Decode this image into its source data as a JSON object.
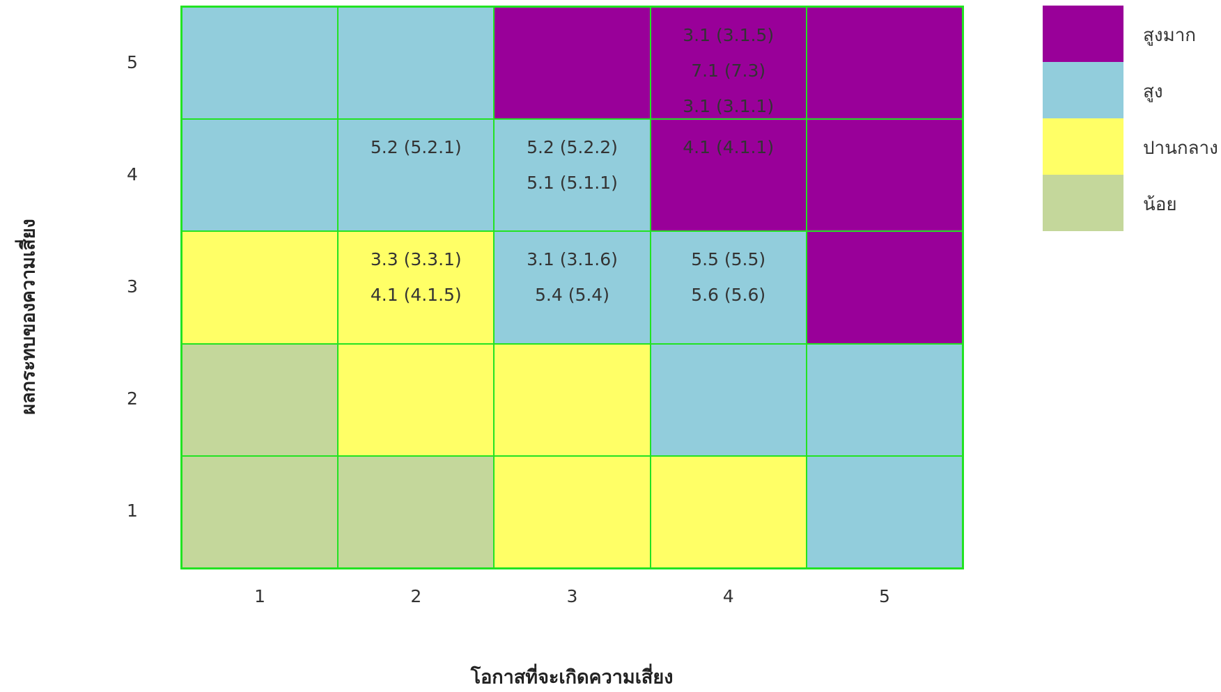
{
  "chart_data": {
    "type": "heatmap",
    "title": "",
    "xlabel": "โอกาสที่จะเกิดความเสี่ยง",
    "ylabel": "ผลกระทบของความเสี่ยง",
    "x_categories": [
      "1",
      "2",
      "3",
      "4",
      "5"
    ],
    "y_categories": [
      "1",
      "2",
      "3",
      "4",
      "5"
    ],
    "colors": {
      "very_high": "#990099",
      "high": "#92cddc",
      "medium": "#ffff66",
      "low": "#c4d79b",
      "grid": "#22e322"
    },
    "legend": {
      "placement": "right",
      "items": [
        {
          "label": "สูงมาก",
          "level": "very_high"
        },
        {
          "label": "สูง",
          "level": "high"
        },
        {
          "label": "ปานกลาง",
          "level": "medium"
        },
        {
          "label": "น้อย",
          "level": "low"
        }
      ]
    },
    "cells": [
      {
        "x": 1,
        "y": 5,
        "level": "high",
        "items": []
      },
      {
        "x": 2,
        "y": 5,
        "level": "high",
        "items": []
      },
      {
        "x": 3,
        "y": 5,
        "level": "very_high",
        "items": []
      },
      {
        "x": 4,
        "y": 5,
        "level": "very_high",
        "items": [
          "3.1 (3.1.5)",
          "7.1 (7.3)",
          "3.1 (3.1.1)"
        ]
      },
      {
        "x": 5,
        "y": 5,
        "level": "very_high",
        "items": []
      },
      {
        "x": 1,
        "y": 4,
        "level": "high",
        "items": []
      },
      {
        "x": 2,
        "y": 4,
        "level": "high",
        "items": [
          "5.2 (5.2.1)"
        ]
      },
      {
        "x": 3,
        "y": 4,
        "level": "high",
        "items": [
          "5.2 (5.2.2)",
          "5.1 (5.1.1)"
        ]
      },
      {
        "x": 4,
        "y": 4,
        "level": "very_high",
        "items": [
          "4.1 (4.1.1)"
        ]
      },
      {
        "x": 5,
        "y": 4,
        "level": "very_high",
        "items": []
      },
      {
        "x": 1,
        "y": 3,
        "level": "medium",
        "items": []
      },
      {
        "x": 2,
        "y": 3,
        "level": "medium",
        "items": [
          "3.3 (3.3.1)",
          "4.1 (4.1.5)"
        ]
      },
      {
        "x": 3,
        "y": 3,
        "level": "high",
        "items": [
          "3.1 (3.1.6)",
          "5.4 (5.4)"
        ]
      },
      {
        "x": 4,
        "y": 3,
        "level": "high",
        "items": [
          "5.5 (5.5)",
          "5.6 (5.6)"
        ]
      },
      {
        "x": 5,
        "y": 3,
        "level": "very_high",
        "items": []
      },
      {
        "x": 1,
        "y": 2,
        "level": "low",
        "items": []
      },
      {
        "x": 2,
        "y": 2,
        "level": "medium",
        "items": []
      },
      {
        "x": 3,
        "y": 2,
        "level": "medium",
        "items": []
      },
      {
        "x": 4,
        "y": 2,
        "level": "high",
        "items": []
      },
      {
        "x": 5,
        "y": 2,
        "level": "high",
        "items": []
      },
      {
        "x": 1,
        "y": 1,
        "level": "low",
        "items": []
      },
      {
        "x": 2,
        "y": 1,
        "level": "low",
        "items": []
      },
      {
        "x": 3,
        "y": 1,
        "level": "medium",
        "items": []
      },
      {
        "x": 4,
        "y": 1,
        "level": "medium",
        "items": []
      },
      {
        "x": 5,
        "y": 1,
        "level": "high",
        "items": []
      }
    ]
  }
}
